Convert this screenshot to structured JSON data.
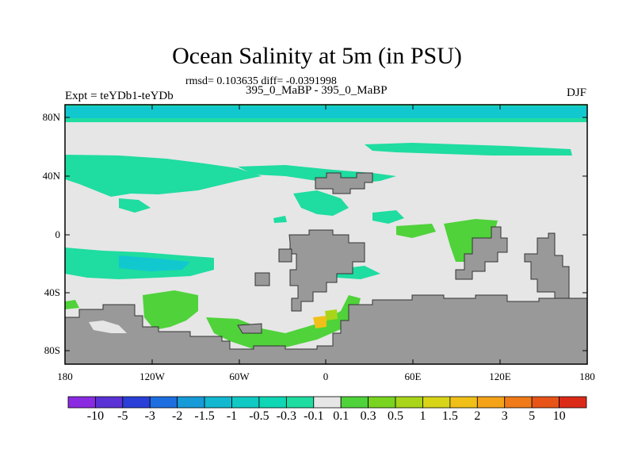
{
  "title": "Ocean Salinity at 5m (in PSU)",
  "stats": "rmsd= 0.103635 diff= -0.0391998",
  "left_label": "Expt = teYDb1-teYDb",
  "center_label": "395_0_MaBP - 395_0_MaBP",
  "right_label": "DJF",
  "y_ticks": [
    "80N",
    "40N",
    "0",
    "40S",
    "80S"
  ],
  "x_ticks": [
    "180",
    "120W",
    "60W",
    "0",
    "60E",
    "120E",
    "180"
  ],
  "colorbar": {
    "labels": [
      "-10",
      "-5",
      "-3",
      "-2",
      "-1.5",
      "-1",
      "-0.5",
      "-0.3",
      "-0.1",
      "0.1",
      "0.3",
      "0.5",
      "1",
      "1.5",
      "2",
      "3",
      "5",
      "10"
    ],
    "colors": [
      "#8a2be2",
      "#5a32d6",
      "#2a3fd8",
      "#1d6fe0",
      "#169bd8",
      "#12b8d0",
      "#10c9c4",
      "#0fd6b4",
      "#1fdca0",
      "#e6e6e6",
      "#4fd23a",
      "#78d41f",
      "#a8d51a",
      "#d8d418",
      "#f0c018",
      "#f4a318",
      "#f07a18",
      "#e85418",
      "#dc2a18"
    ]
  },
  "colors": {
    "background": "#e6e6e6",
    "land": "#999999",
    "teal": "#1fdca0",
    "cyan": "#12c8cf",
    "green": "#4fd23a",
    "yellow_green": "#a8d51a",
    "orange": "#f0c018"
  }
}
